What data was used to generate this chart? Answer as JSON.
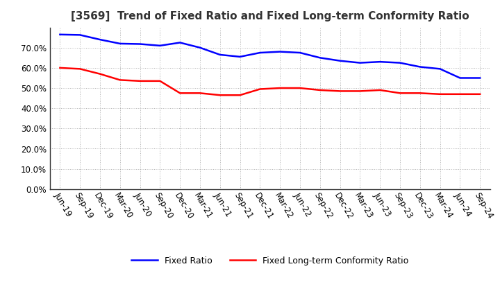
{
  "title": "[3569]  Trend of Fixed Ratio and Fixed Long-term Conformity Ratio",
  "x_labels": [
    "Jun-19",
    "Sep-19",
    "Dec-19",
    "Mar-20",
    "Jun-20",
    "Sep-20",
    "Dec-20",
    "Mar-21",
    "Jun-21",
    "Sep-21",
    "Dec-21",
    "Mar-22",
    "Jun-22",
    "Sep-22",
    "Dec-22",
    "Mar-23",
    "Jun-23",
    "Sep-23",
    "Dec-23",
    "Mar-24",
    "Jun-24",
    "Sep-24"
  ],
  "fixed_ratio": [
    76.5,
    76.3,
    74.0,
    72.0,
    71.8,
    71.0,
    72.5,
    70.0,
    66.5,
    65.5,
    67.5,
    68.0,
    67.5,
    65.0,
    63.5,
    62.5,
    63.0,
    62.5,
    60.5,
    59.5,
    55.0,
    55.0
  ],
  "fixed_lt_ratio": [
    60.0,
    59.5,
    57.0,
    54.0,
    53.5,
    53.5,
    47.5,
    47.5,
    46.5,
    46.5,
    49.5,
    50.0,
    50.0,
    49.0,
    48.5,
    48.5,
    49.0,
    47.5,
    47.5,
    47.0,
    47.0,
    47.0
  ],
  "blue_color": "#0000FF",
  "red_color": "#FF0000",
  "background_color": "#FFFFFF",
  "grid_color": "#AAAAAA",
  "ylim": [
    0,
    80
  ],
  "yticks": [
    0,
    10,
    20,
    30,
    40,
    50,
    60,
    70
  ],
  "legend_labels": [
    "Fixed Ratio",
    "Fixed Long-term Conformity Ratio"
  ],
  "title_fontsize": 11,
  "tick_fontsize": 8.5,
  "legend_fontsize": 9
}
